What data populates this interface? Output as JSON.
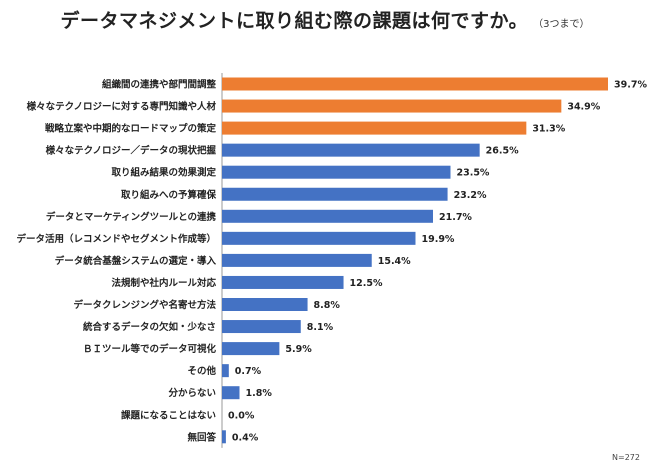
{
  "chart_data": {
    "type": "bar",
    "orientation": "horizontal",
    "title": "データマネジメントに取り組む際の課題は何ですか。",
    "subtitle": "（3つまで）",
    "note": "N=272",
    "unit": "%",
    "xlim": [
      0,
      40
    ],
    "grid": false,
    "categories": [
      "組織間の連携や部門間調整",
      "様々なテクノロジーに対する専門知識や人材",
      "戦略立案や中期的なロードマップの策定",
      "様々なテクノロジー／データの現状把握",
      "取り組み結果の効果測定",
      "取り組みへの予算確保",
      "データとマーケティングツールとの連携",
      "データ活用（レコメンドやセグメント作成等）",
      "データ統合基盤システムの選定・導入",
      "法規制や社内ルール対応",
      "データクレンジングや名寄せ方法",
      "統合するデータの欠如・少なさ",
      "ＢＩツール等でのデータ可視化",
      "その他",
      "分からない",
      "課題になることはない",
      "無回答"
    ],
    "values": [
      39.7,
      34.9,
      31.3,
      26.5,
      23.5,
      23.2,
      21.7,
      19.9,
      15.4,
      12.5,
      8.8,
      8.1,
      5.9,
      0.7,
      1.8,
      0.0,
      0.4
    ],
    "value_labels": [
      "39.7%",
      "34.9%",
      "31.3%",
      "26.5%",
      "23.5%",
      "23.2%",
      "21.7%",
      "19.9%",
      "15.4%",
      "12.5%",
      "8.8%",
      "8.1%",
      "5.9%",
      "0.7%",
      "1.8%",
      "0.0%",
      "0.4%"
    ],
    "highlight_count": 3,
    "colors": {
      "highlight": "#ED7D31",
      "default": "#4472C4",
      "axis": "#999999"
    }
  }
}
